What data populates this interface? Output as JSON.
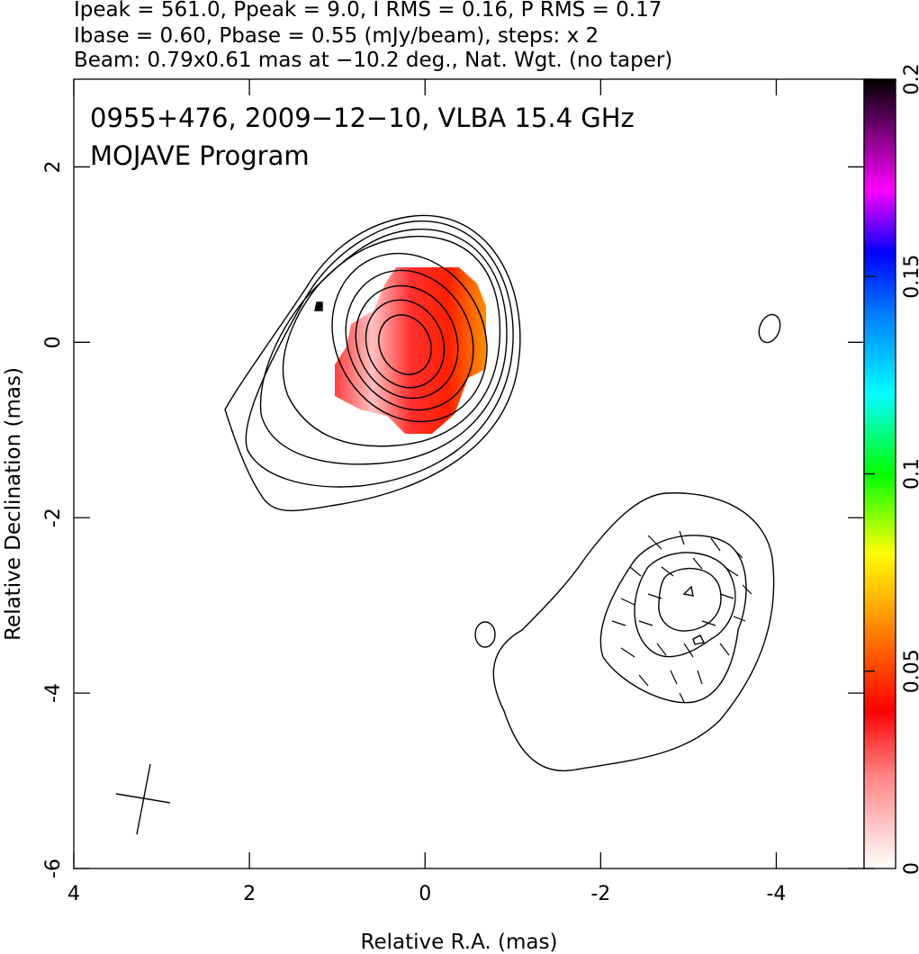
{
  "chart_data": {
    "type": "map",
    "header": [
      "Ipeak = 561.0, Ppeak = 9.0, I RMS = 0.16, P RMS = 0.17",
      "Ibase = 0.60, Pbase = 0.55 (mJy/beam), steps: x 2",
      "Beam: 0.79x0.61 mas at −10.2 deg., Nat. Wgt. (no taper)"
    ],
    "annotations": [
      "0955+476, 2009−12−10, VLBA 15.4 GHz",
      "MOJAVE Program"
    ],
    "xlabel": "Relative R.A. (mas)",
    "ylabel": "Relative Declination (mas)",
    "xlim": [
      4,
      -5
    ],
    "ylim": [
      -6,
      3
    ],
    "xticks": [
      4,
      2,
      0,
      -2,
      -4
    ],
    "yticks": [
      -6,
      -4,
      -2,
      0,
      2
    ],
    "colorbar_lim": [
      0,
      0.2
    ],
    "colorbar_ticks": [
      0,
      0.05,
      0.1,
      0.15,
      0.2
    ]
  }
}
